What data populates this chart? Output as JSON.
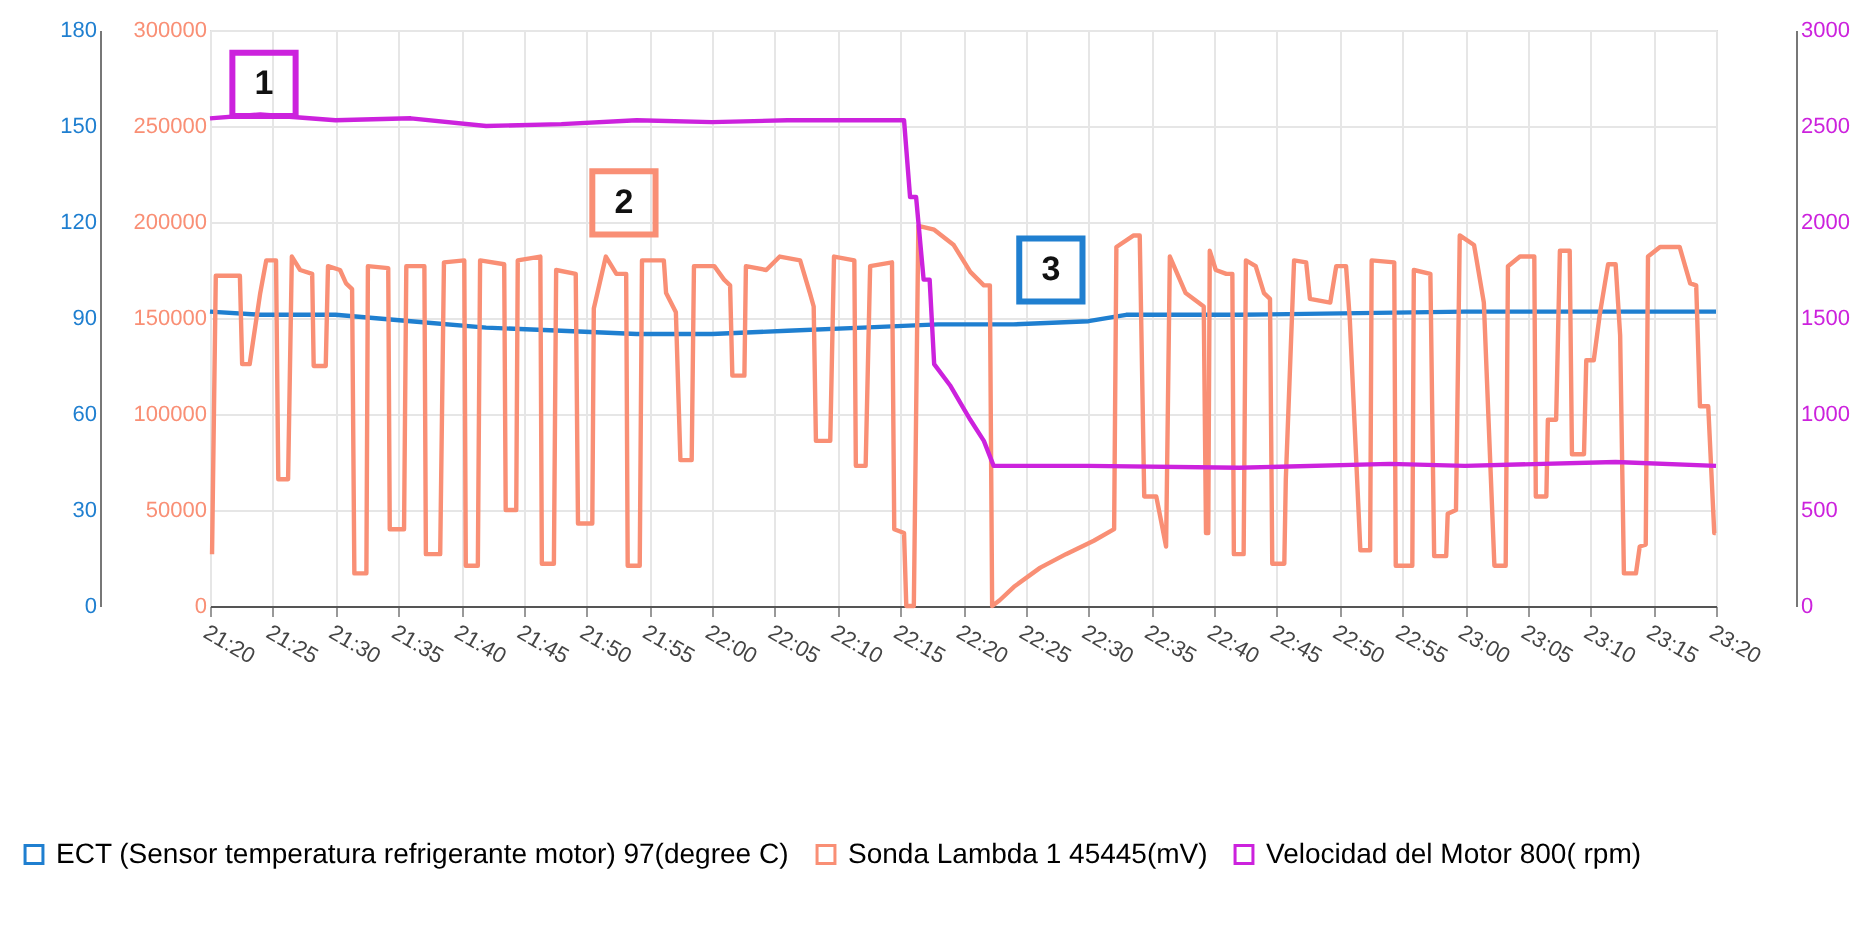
{
  "chart_data": {
    "type": "line",
    "xlim": [
      21.3333,
      23.3333
    ],
    "xticks": [
      {
        "value": 21.3333,
        "label": "21:20"
      },
      {
        "value": 21.4167,
        "label": "21:25"
      },
      {
        "value": 21.5,
        "label": "21:30"
      },
      {
        "value": 21.5833,
        "label": "21:35"
      },
      {
        "value": 21.6667,
        "label": "21:40"
      },
      {
        "value": 21.75,
        "label": "21:45"
      },
      {
        "value": 21.8333,
        "label": "21:50"
      },
      {
        "value": 21.9167,
        "label": "21:55"
      },
      {
        "value": 22.0,
        "label": "22:00"
      },
      {
        "value": 22.0833,
        "label": "22:05"
      },
      {
        "value": 22.1667,
        "label": "22:10"
      },
      {
        "value": 22.25,
        "label": "22:15"
      },
      {
        "value": 22.3333,
        "label": "22:20"
      },
      {
        "value": 22.4167,
        "label": "22:25"
      },
      {
        "value": 22.5,
        "label": "22:30"
      },
      {
        "value": 22.5833,
        "label": "22:35"
      },
      {
        "value": 22.6667,
        "label": "22:40"
      },
      {
        "value": 22.75,
        "label": "22:45"
      },
      {
        "value": 22.8333,
        "label": "22:50"
      },
      {
        "value": 22.9167,
        "label": "22:55"
      },
      {
        "value": 23.0,
        "label": "23:00"
      },
      {
        "value": 23.0833,
        "label": "23:05"
      },
      {
        "value": 23.1667,
        "label": "23:10"
      },
      {
        "value": 23.25,
        "label": "23:15"
      },
      {
        "value": 23.3333,
        "label": "23:20"
      }
    ],
    "ylim": [
      0,
      180
    ],
    "yticks": [
      0,
      30,
      60,
      90,
      120,
      150,
      180
    ],
    "y2lim": [
      0,
      300000
    ],
    "y2ticks": [
      0,
      50000,
      100000,
      150000,
      200000,
      250000,
      300000
    ],
    "y3lim": [
      0,
      3000
    ],
    "y3ticks": [
      0,
      500,
      1000,
      1500,
      2000,
      2500,
      3000
    ],
    "grid": true,
    "legend": "bottom",
    "marker": "none",
    "line_style": "solid",
    "annotations": [
      {
        "text": "1",
        "x": 21.405,
        "y": 163
      },
      {
        "text": "2",
        "x": 21.883,
        "y": 126
      },
      {
        "text": "3",
        "x": 22.45,
        "y": 105
      }
    ],
    "series": [
      {
        "name": "ECT (Sensor temperatura refrigerante motor) 97(degree C)",
        "color": "#1f7fd0",
        "axis": "y",
        "x": [
          21.3333,
          21.4,
          21.5,
          21.6,
          21.7,
          21.8,
          21.9,
          22.0,
          22.1,
          22.2,
          22.3,
          22.4,
          22.5,
          22.55,
          22.7,
          23.0,
          23.3333
        ],
        "values": [
          92,
          91,
          91,
          89,
          87,
          86,
          85,
          85,
          86,
          87,
          88,
          88,
          89,
          91,
          91,
          92,
          92
        ]
      },
      {
        "name": "Sonda Lambda 1 45445(mV)",
        "color": "#f98f75",
        "axis": "y2",
        "x": [
          21.336,
          21.341,
          21.373,
          21.376,
          21.386,
          21.4,
          21.408,
          21.421,
          21.424,
          21.437,
          21.442,
          21.453,
          21.469,
          21.471,
          21.487,
          21.49,
          21.506,
          21.514,
          21.522,
          21.525,
          21.541,
          21.543,
          21.57,
          21.572,
          21.591,
          21.594,
          21.618,
          21.62,
          21.639,
          21.644,
          21.671,
          21.673,
          21.689,
          21.692,
          21.724,
          21.726,
          21.74,
          21.742,
          21.772,
          21.774,
          21.79,
          21.793,
          21.819,
          21.822,
          21.841,
          21.843,
          21.859,
          21.873,
          21.886,
          21.888,
          21.904,
          21.907,
          21.936,
          21.939,
          21.952,
          21.958,
          21.973,
          21.976,
          22.003,
          22.016,
          22.024,
          22.027,
          22.043,
          22.045,
          22.072,
          22.09,
          22.117,
          22.13,
          22.135,
          22.138,
          22.157,
          22.162,
          22.189,
          22.191,
          22.204,
          22.21,
          22.239,
          22.242,
          22.255,
          22.258,
          22.268,
          22.274,
          22.295,
          22.321,
          22.343,
          22.361,
          22.369,
          22.372,
          22.382,
          22.401,
          22.436,
          22.47,
          22.507,
          22.534,
          22.537,
          22.56,
          22.568,
          22.574,
          22.59,
          22.603,
          22.608,
          22.629,
          22.653,
          22.656,
          22.659,
          22.661,
          22.669,
          22.683,
          22.691,
          22.693,
          22.706,
          22.709,
          22.722,
          22.733,
          22.741,
          22.744,
          22.76,
          22.762,
          22.773,
          22.789,
          22.794,
          22.821,
          22.829,
          22.842,
          22.847,
          22.861,
          22.874,
          22.876,
          22.906,
          22.908,
          22.93,
          22.932,
          22.954,
          22.959,
          22.975,
          22.977,
          22.988,
          22.993,
          23.012,
          23.025,
          23.039,
          23.054,
          23.057,
          23.073,
          23.092,
          23.094,
          23.108,
          23.11,
          23.121,
          23.126,
          23.139,
          23.142,
          23.158,
          23.161,
          23.171,
          23.179,
          23.19,
          23.2,
          23.206,
          23.211,
          23.227,
          23.232,
          23.24,
          23.243,
          23.259,
          23.285,
          23.299,
          23.307,
          23.312,
          23.323,
          23.331,
          23.333
        ],
        "values": [
          27000,
          172000,
          172000,
          126000,
          126000,
          163000,
          180000,
          180000,
          66000,
          66000,
          182000,
          175000,
          173000,
          125000,
          125000,
          177000,
          175000,
          168000,
          165000,
          17000,
          17000,
          177000,
          176000,
          40000,
          40000,
          177000,
          177000,
          27000,
          27000,
          179000,
          180000,
          21000,
          21000,
          180000,
          178000,
          50000,
          50000,
          180000,
          182000,
          22000,
          22000,
          175000,
          173000,
          43000,
          43000,
          155000,
          182000,
          173000,
          173000,
          21000,
          21000,
          180000,
          180000,
          163000,
          153000,
          76000,
          76000,
          177000,
          177000,
          170000,
          167000,
          120000,
          120000,
          177000,
          175000,
          182000,
          180000,
          163000,
          156000,
          86000,
          86000,
          182000,
          180000,
          73000,
          73000,
          177000,
          179000,
          40000,
          38000,
          0,
          0,
          198000,
          196000,
          188000,
          174000,
          167000,
          167000,
          0,
          3000,
          10000,
          20000,
          27000,
          34000,
          40000,
          187000,
          193000,
          193000,
          57000,
          57000,
          31000,
          182000,
          163000,
          156000,
          38000,
          38000,
          185000,
          175000,
          173000,
          173000,
          27000,
          27000,
          180000,
          177000,
          163000,
          160000,
          22000,
          22000,
          66000,
          180000,
          179000,
          160000,
          158000,
          177000,
          177000,
          149000,
          29000,
          29000,
          180000,
          179000,
          21000,
          21000,
          175000,
          173000,
          26000,
          26000,
          48000,
          50000,
          193000,
          188000,
          158000,
          21000,
          21000,
          177000,
          182000,
          182000,
          57000,
          57000,
          97000,
          97000,
          185000,
          185000,
          79000,
          79000,
          128000,
          128000,
          152000,
          178000,
          178000,
          141000,
          17000,
          17000,
          31000,
          32000,
          182000,
          187000,
          187000,
          168000,
          167000,
          104000,
          104000,
          38000,
          38000
        ]
      },
      {
        "name": "Velocidad del Motor 800( rpm)",
        "color": "#cc22dd",
        "axis": "y3",
        "x": [
          21.3333,
          21.4,
          21.5,
          21.6,
          21.7,
          21.8,
          21.9,
          22.0,
          22.1,
          22.255,
          22.263,
          22.271,
          22.281,
          22.289,
          22.295,
          22.316,
          22.343,
          22.361,
          22.374,
          22.5,
          22.7,
          22.9,
          23.0,
          23.2,
          23.3333
        ],
        "values": [
          2540,
          2560,
          2530,
          2540,
          2500,
          2510,
          2530,
          2520,
          2530,
          2530,
          2130,
          2130,
          1700,
          1700,
          1260,
          1150,
          970,
          860,
          730,
          730,
          720,
          740,
          730,
          750,
          730
        ]
      }
    ]
  }
}
